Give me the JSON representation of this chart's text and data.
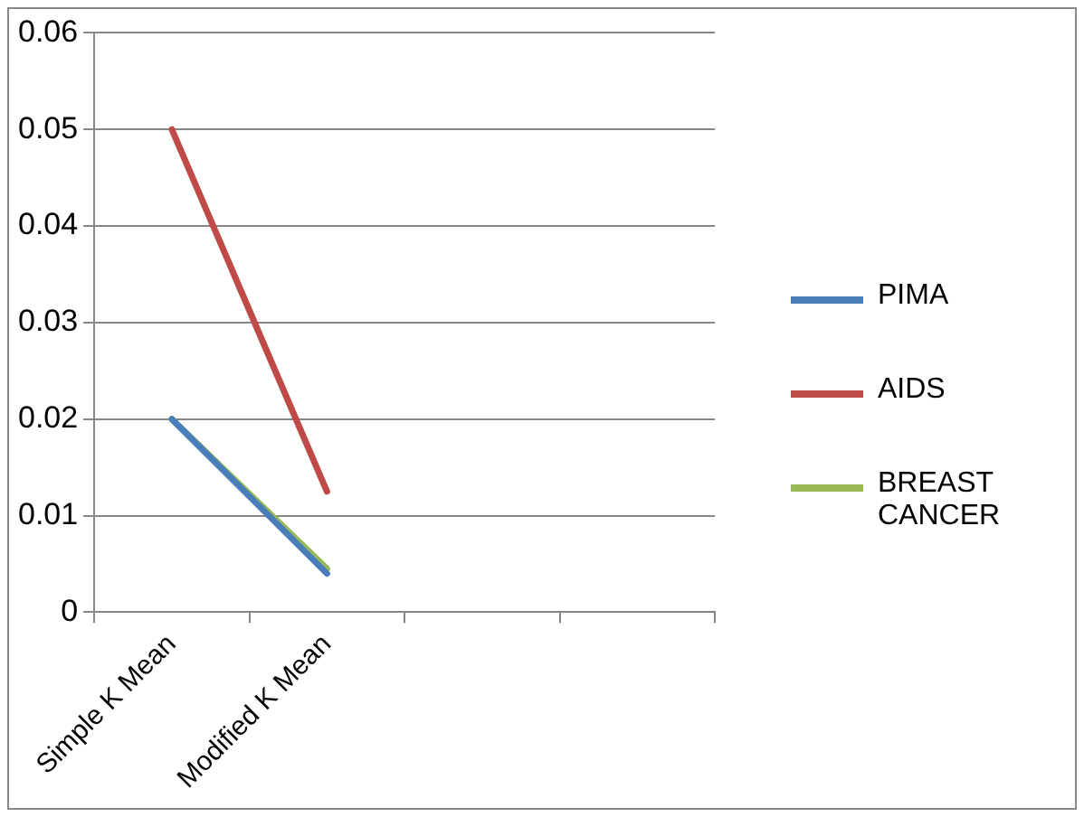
{
  "chart_data": {
    "type": "line",
    "categories": [
      "Simple K Mean",
      "Modified K Mean",
      null,
      null
    ],
    "series": [
      {
        "name": "PIMA",
        "color": "#4a7ebb",
        "values": [
          0.02,
          0.004,
          null,
          null
        ]
      },
      {
        "name": "AIDS",
        "color": "#be4b48",
        "values": [
          0.05,
          0.0125,
          null,
          null
        ]
      },
      {
        "name": "BREAST CANCER",
        "color": "#98b954",
        "values": [
          0.02,
          0.0045,
          null,
          null
        ]
      }
    ],
    "ylim": [
      0,
      0.06
    ],
    "yticks": [
      0,
      0.01,
      0.02,
      0.03,
      0.04,
      0.05,
      0.06
    ],
    "grid": "y",
    "legend": "right",
    "marker": "none",
    "line_style": "solid"
  }
}
